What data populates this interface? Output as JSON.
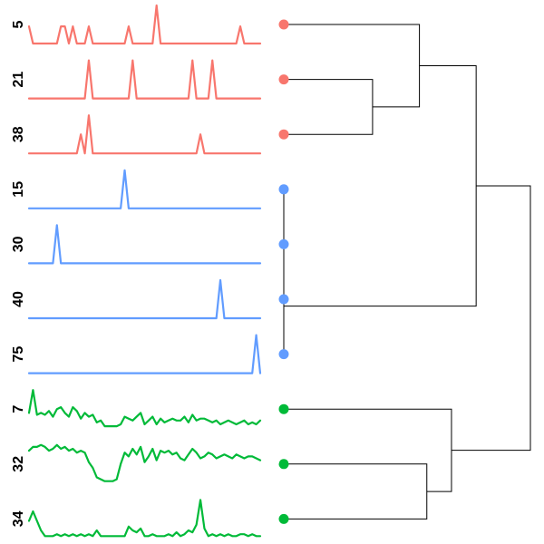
{
  "colors": {
    "cluster_a": "#f8766d",
    "cluster_b": "#619cff",
    "cluster_c": "#00ba38",
    "tree": "#000000"
  },
  "series": [
    {
      "label": "5",
      "color": "#f8766d",
      "values": [
        0.45,
        0,
        0,
        0,
        0,
        0,
        0,
        0,
        0.45,
        0.45,
        0,
        0.45,
        0,
        0,
        0,
        0.45,
        0,
        0,
        0,
        0,
        0,
        0,
        0,
        0,
        0,
        0.45,
        0,
        0,
        0,
        0,
        0,
        0,
        1,
        0,
        0,
        0,
        0,
        0,
        0,
        0,
        0,
        0,
        0,
        0,
        0,
        0,
        0,
        0,
        0,
        0,
        0,
        0,
        0,
        0.45,
        0,
        0,
        0,
        0,
        0
      ]
    },
    {
      "label": "21",
      "color": "#f8766d",
      "values": [
        0,
        0,
        0,
        0,
        0,
        0,
        0,
        0,
        0,
        0,
        0,
        0,
        0,
        0,
        0,
        1,
        0,
        0,
        0,
        0,
        0,
        0,
        0,
        0,
        0,
        0,
        1,
        0,
        0,
        0,
        0,
        0,
        0,
        0,
        0,
        0,
        0,
        0,
        0,
        0,
        0,
        1,
        0,
        0,
        0,
        0,
        1,
        0,
        0,
        0,
        0,
        0,
        0,
        0,
        0,
        0,
        0,
        0,
        0
      ]
    },
    {
      "label": "38",
      "color": "#f8766d",
      "values": [
        0,
        0,
        0,
        0,
        0,
        0,
        0,
        0,
        0,
        0,
        0,
        0,
        0,
        0.5,
        0,
        1,
        0,
        0,
        0,
        0,
        0,
        0,
        0,
        0,
        0,
        0,
        0,
        0,
        0,
        0,
        0,
        0,
        0,
        0,
        0,
        0,
        0,
        0,
        0,
        0,
        0,
        0,
        0,
        0.5,
        0,
        0,
        0,
        0,
        0,
        0,
        0,
        0,
        0,
        0,
        0,
        0,
        0,
        0,
        0
      ]
    },
    {
      "label": "15",
      "color": "#619cff",
      "values": [
        0,
        0,
        0,
        0,
        0,
        0,
        0,
        0,
        0,
        0,
        0,
        0,
        0,
        0,
        0,
        0,
        0,
        0,
        0,
        0,
        0,
        0,
        0,
        0,
        1,
        0,
        0,
        0,
        0,
        0,
        0,
        0,
        0,
        0,
        0,
        0,
        0,
        0,
        0,
        0,
        0,
        0,
        0,
        0,
        0,
        0,
        0,
        0,
        0,
        0,
        0,
        0,
        0,
        0,
        0,
        0,
        0,
        0,
        0
      ]
    },
    {
      "label": "30",
      "color": "#619cff",
      "values": [
        0,
        0,
        0,
        0,
        0,
        0,
        0,
        1,
        0,
        0,
        0,
        0,
        0,
        0,
        0,
        0,
        0,
        0,
        0,
        0,
        0,
        0,
        0,
        0,
        0,
        0,
        0,
        0,
        0,
        0,
        0,
        0,
        0,
        0,
        0,
        0,
        0,
        0,
        0,
        0,
        0,
        0,
        0,
        0,
        0,
        0,
        0,
        0,
        0,
        0,
        0,
        0,
        0,
        0,
        0,
        0,
        0,
        0,
        0
      ]
    },
    {
      "label": "40",
      "color": "#619cff",
      "values": [
        0,
        0,
        0,
        0,
        0,
        0,
        0,
        0,
        0,
        0,
        0,
        0,
        0,
        0,
        0,
        0,
        0,
        0,
        0,
        0,
        0,
        0,
        0,
        0,
        0,
        0,
        0,
        0,
        0,
        0,
        0,
        0,
        0,
        0,
        0,
        0,
        0,
        0,
        0,
        0,
        0,
        0,
        0,
        0,
        0,
        0,
        0,
        0,
        1,
        0,
        0,
        0,
        0,
        0,
        0,
        0,
        0,
        0,
        0
      ]
    },
    {
      "label": "75",
      "color": "#619cff",
      "values": [
        0,
        0,
        0,
        0,
        0,
        0,
        0,
        0,
        0,
        0,
        0,
        0,
        0,
        0,
        0,
        0,
        0,
        0,
        0,
        0,
        0,
        0,
        0,
        0,
        0,
        0,
        0,
        0,
        0,
        0,
        0,
        0,
        0,
        0,
        0,
        0,
        0,
        0,
        0,
        0,
        0,
        0,
        0,
        0,
        0,
        0,
        0,
        0,
        0,
        0,
        0,
        0,
        0,
        0,
        0,
        0,
        0,
        1,
        0
      ]
    },
    {
      "label": "7",
      "color": "#00ba38",
      "values": [
        0.4,
        1,
        0.35,
        0.4,
        0.35,
        0.45,
        0.3,
        0.5,
        0.55,
        0.4,
        0.3,
        0.55,
        0.45,
        0.25,
        0.4,
        0.3,
        0.35,
        0.15,
        0.2,
        0.05,
        0.05,
        0.05,
        0.05,
        0.1,
        0.3,
        0.25,
        0.2,
        0.3,
        0.4,
        0.1,
        0.2,
        0.3,
        0.1,
        0.25,
        0.15,
        0.2,
        0.25,
        0.2,
        0.2,
        0.3,
        0.15,
        0.35,
        0.2,
        0.25,
        0.25,
        0.2,
        0.15,
        0.2,
        0.1,
        0.15,
        0.2,
        0.15,
        0.1,
        0.15,
        0.2,
        0.1,
        0.15,
        0.1,
        0.2
      ]
    },
    {
      "label": "32",
      "color": "#00ba38",
      "values": [
        0.85,
        0.95,
        0.95,
        1,
        0.95,
        0.85,
        0.9,
        1,
        0.9,
        0.95,
        0.85,
        0.9,
        0.8,
        0.85,
        0.8,
        0.55,
        0.4,
        0.15,
        0.1,
        0.05,
        0.05,
        0.05,
        0.1,
        0.5,
        0.8,
        0.7,
        0.9,
        0.75,
        0.95,
        0.55,
        0.7,
        0.9,
        0.6,
        0.85,
        0.8,
        0.85,
        0.75,
        0.8,
        0.65,
        0.6,
        0.75,
        0.9,
        0.8,
        0.65,
        0.7,
        0.8,
        0.75,
        0.65,
        0.7,
        0.75,
        0.7,
        0.65,
        0.75,
        0.7,
        0.65,
        0.7,
        0.7,
        0.65,
        0.6
      ]
    },
    {
      "label": "34",
      "color": "#00ba38",
      "values": [
        0.45,
        0.7,
        0.45,
        0.2,
        0.05,
        0.05,
        0.05,
        0.1,
        0.05,
        0.1,
        0.05,
        0.1,
        0.05,
        0.1,
        0.05,
        0.1,
        0.05,
        0.2,
        0.05,
        0.05,
        0.05,
        0.05,
        0.05,
        0.05,
        0.05,
        0.3,
        0.2,
        0.15,
        0.25,
        0.05,
        0.05,
        0.1,
        0.05,
        0.05,
        0.05,
        0.1,
        0.05,
        0.15,
        0.05,
        0.1,
        0.2,
        0.15,
        0.35,
        1,
        0.25,
        0.05,
        0.1,
        0.05,
        0.1,
        0.05,
        0.1,
        0.05,
        0.05,
        0.1,
        0.1,
        0.05,
        0.1,
        0.05,
        0.05
      ]
    }
  ],
  "tree": {
    "leaves": [
      "5",
      "21",
      "38",
      "15",
      "30",
      "40",
      "75",
      "7",
      "32",
      "34"
    ],
    "merges": [
      {
        "a": 1,
        "b": 2,
        "height": 0.36
      },
      {
        "a": 0,
        "b": 10,
        "height": 0.55
      },
      {
        "a": 3,
        "b": 4,
        "height": 0.0
      },
      {
        "a": 12,
        "b": 5,
        "height": 0.0
      },
      {
        "a": 13,
        "b": 6,
        "height": 0.0
      },
      {
        "a": 11,
        "b": 14,
        "height": 0.78
      },
      {
        "a": 8,
        "b": 9,
        "height": 0.58
      },
      {
        "a": 7,
        "b": 16,
        "height": 0.68
      },
      {
        "a": 15,
        "b": 17,
        "height": 1.0
      }
    ]
  }
}
